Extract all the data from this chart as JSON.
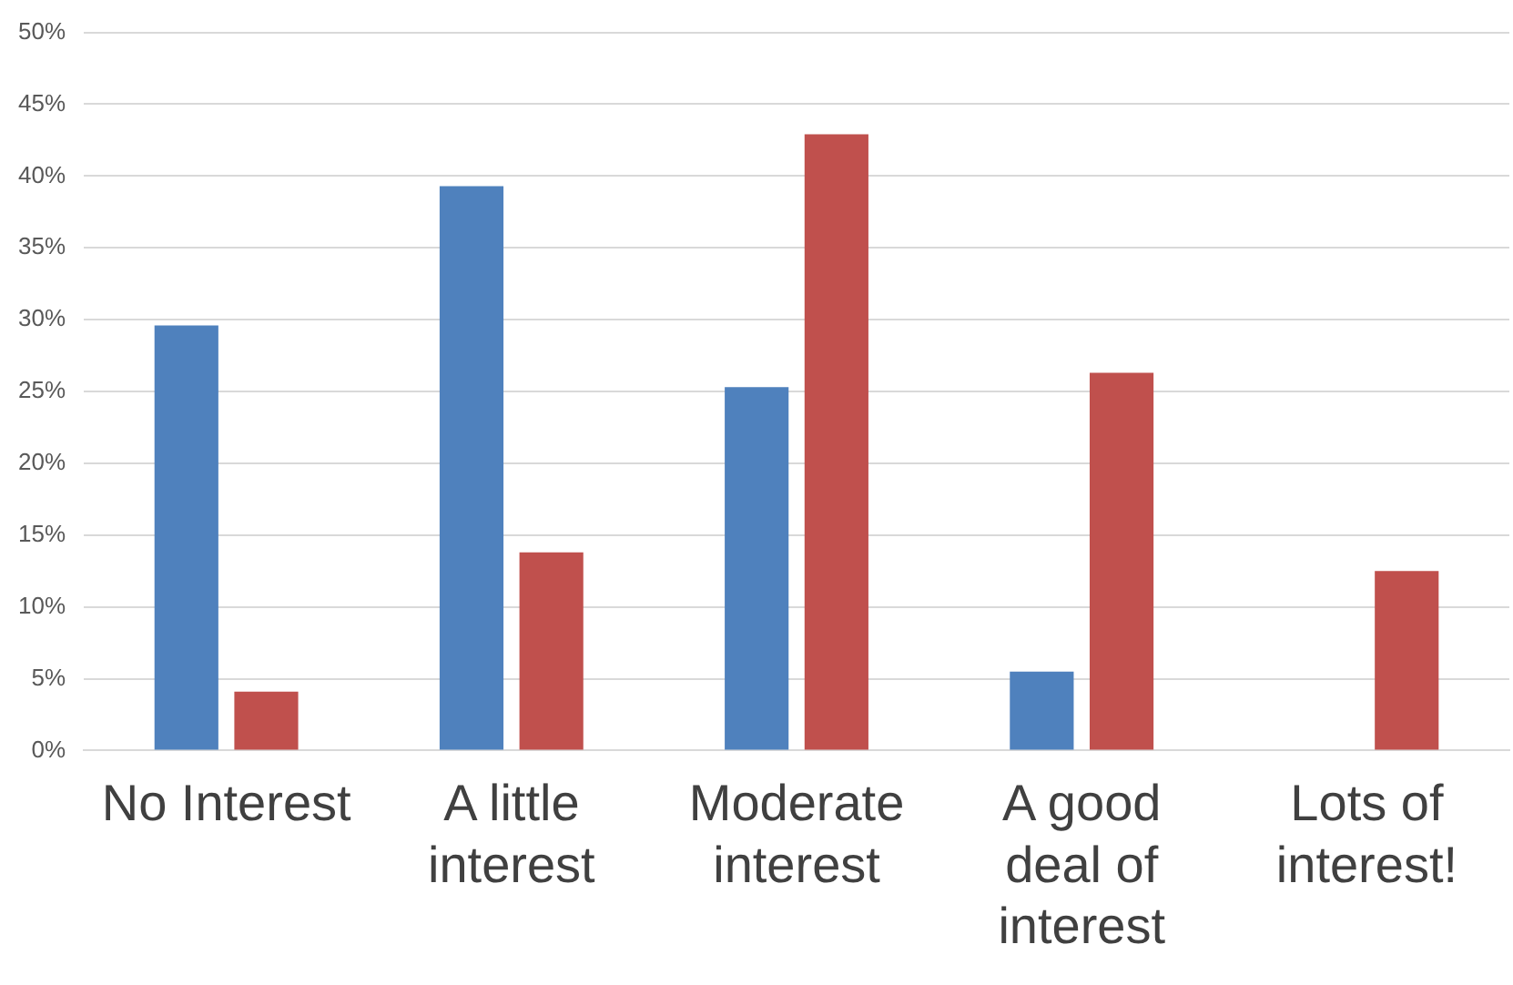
{
  "chart_data": {
    "type": "bar",
    "categories": [
      "No Interest",
      "A little interest",
      "Moderate interest",
      "A good deal of interest",
      "Lots of interest!"
    ],
    "series": [
      {
        "color": "#4f81bd",
        "values": [
          29.6,
          39.3,
          25.3,
          5.5,
          0
        ]
      },
      {
        "color": "#c0504d",
        "values": [
          4.1,
          13.8,
          42.9,
          26.3,
          12.5
        ]
      }
    ],
    "ylim": [
      0,
      50
    ],
    "yticks": [
      {
        "value": 0,
        "label": "0%"
      },
      {
        "value": 5,
        "label": "5%"
      },
      {
        "value": 10,
        "label": "10%"
      },
      {
        "value": 15,
        "label": "15%"
      },
      {
        "value": 20,
        "label": "20%"
      },
      {
        "value": 25,
        "label": "25%"
      },
      {
        "value": 30,
        "label": "30%"
      },
      {
        "value": 35,
        "label": "35%"
      },
      {
        "value": 40,
        "label": "40%"
      },
      {
        "value": 45,
        "label": "45%"
      },
      {
        "value": 50,
        "label": "50%"
      }
    ],
    "grid": "y",
    "legend": false
  }
}
